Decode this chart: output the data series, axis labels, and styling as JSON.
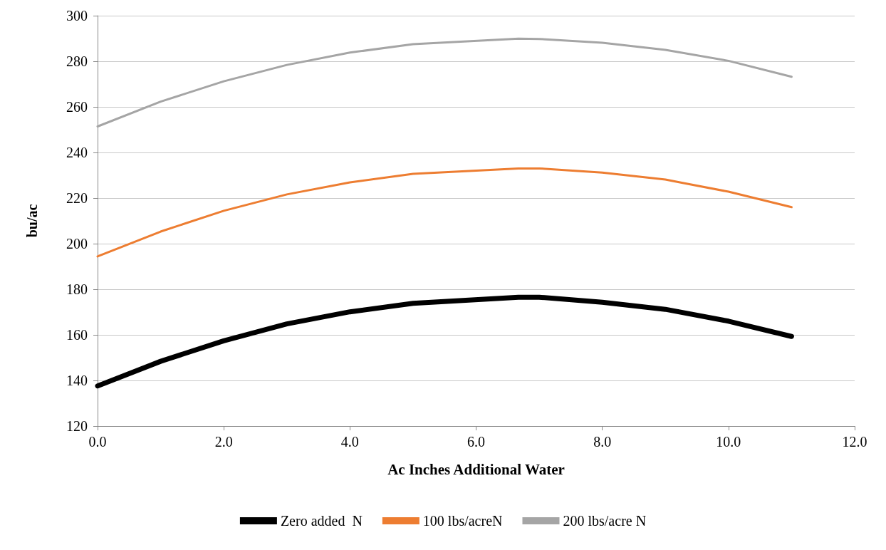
{
  "chart_data": {
    "type": "line",
    "xlabel": "Ac Inches Additional Water",
    "ylabel": "bu/ac",
    "x": [
      0,
      1,
      2,
      3,
      4,
      5,
      6.67,
      7,
      8,
      9,
      10,
      11
    ],
    "series": [
      {
        "name": "Zero added  N",
        "color": "#000000",
        "values": [
          137.6,
          148.4,
          157.4,
          164.8,
          170.1,
          173.8,
          176.5,
          176.5,
          174.3,
          171.2,
          166,
          159.3
        ]
      },
      {
        "name": "100 lbs/acreN",
        "color": "#ed7d31",
        "values": [
          194.4,
          205.3,
          214.4,
          221.6,
          226.9,
          230.6,
          233,
          233,
          231.2,
          228.1,
          222.8,
          216
        ]
      },
      {
        "name": "200 lbs/acre N",
        "color": "#a5a5a5",
        "values": [
          251.4,
          262.3,
          271.2,
          278.4,
          283.8,
          287.5,
          289.9,
          289.8,
          288.1,
          285,
          280.2,
          273.2
        ]
      }
    ],
    "xlim": [
      0,
      12
    ],
    "xticks": [
      {
        "value": 0,
        "label": "0.0"
      },
      {
        "value": 2,
        "label": "2.0"
      },
      {
        "value": 4,
        "label": "4.0"
      },
      {
        "value": 6,
        "label": "6.0"
      },
      {
        "value": 8,
        "label": "8.0"
      },
      {
        "value": 10,
        "label": "10.0"
      },
      {
        "value": 12,
        "label": "12.0"
      }
    ],
    "ylim": [
      120,
      300
    ],
    "yticks": [
      120,
      140,
      160,
      180,
      200,
      220,
      240,
      260,
      280,
      300
    ],
    "grid": "y",
    "legend": "bottom",
    "marker": "none",
    "line_style": "solid"
  }
}
